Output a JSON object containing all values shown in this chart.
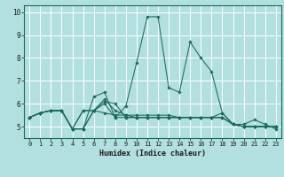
{
  "xlabel": "Humidex (Indice chaleur)",
  "ylabel": "",
  "background_color": "#b2e0e0",
  "line_color": "#1a6b5a",
  "grid_color": "#ffffff",
  "x_values": [
    0,
    1,
    2,
    3,
    4,
    5,
    6,
    7,
    8,
    9,
    10,
    11,
    12,
    13,
    14,
    15,
    16,
    17,
    18,
    19,
    20,
    21,
    22,
    23
  ],
  "series": [
    [
      5.4,
      5.6,
      5.7,
      5.7,
      4.9,
      4.9,
      6.3,
      6.5,
      5.4,
      5.9,
      7.8,
      9.8,
      9.8,
      6.7,
      6.5,
      8.7,
      8.0,
      7.4,
      5.6,
      5.1,
      5.1,
      5.3,
      5.1,
      4.9
    ],
    [
      5.4,
      5.6,
      5.7,
      5.7,
      4.9,
      4.9,
      5.7,
      5.6,
      5.5,
      5.5,
      5.5,
      5.5,
      5.5,
      5.5,
      5.4,
      5.4,
      5.4,
      5.4,
      5.6,
      5.1,
      5.0,
      5.0,
      5.0,
      5.0
    ],
    [
      5.4,
      5.6,
      5.7,
      5.7,
      4.9,
      5.7,
      5.7,
      6.0,
      5.4,
      5.4,
      5.4,
      5.4,
      5.4,
      5.4,
      5.4,
      5.4,
      5.4,
      5.4,
      5.4,
      5.1,
      5.0,
      5.0,
      5.0,
      5.0
    ],
    [
      5.4,
      5.6,
      5.7,
      5.7,
      4.9,
      5.7,
      5.7,
      6.1,
      6.0,
      5.4,
      5.4,
      5.4,
      5.4,
      5.4,
      5.4,
      5.4,
      5.4,
      5.4,
      5.4,
      5.1,
      5.0,
      5.0,
      5.0,
      5.0
    ],
    [
      5.4,
      5.6,
      5.7,
      5.7,
      4.9,
      4.9,
      5.7,
      6.2,
      5.7,
      5.5,
      5.4,
      5.4,
      5.4,
      5.4,
      5.4,
      5.4,
      5.4,
      5.4,
      5.4,
      5.1,
      5.0,
      5.0,
      5.0,
      5.0
    ]
  ],
  "ylim": [
    4.5,
    10.3
  ],
  "xlim": [
    -0.5,
    23.5
  ],
  "yticks": [
    5,
    6,
    7,
    8,
    9,
    10
  ],
  "xticks": [
    0,
    1,
    2,
    3,
    4,
    5,
    6,
    7,
    8,
    9,
    10,
    11,
    12,
    13,
    14,
    15,
    16,
    17,
    18,
    19,
    20,
    21,
    22,
    23
  ],
  "xlabel_fontsize": 6.0,
  "tick_fontsize": 5.0
}
